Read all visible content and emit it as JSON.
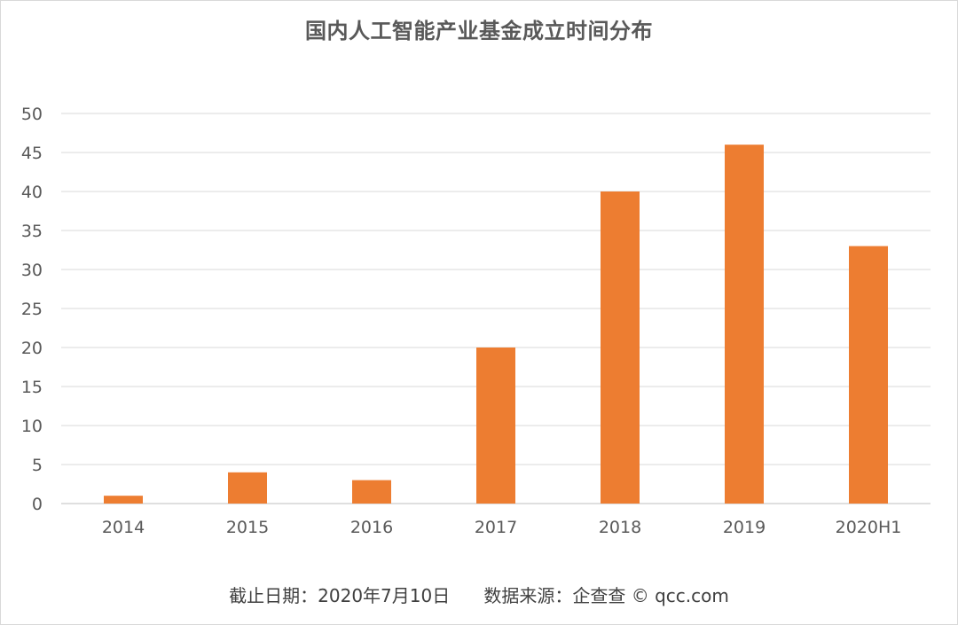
{
  "chart_data": {
    "type": "bar",
    "title": "国内人工智能产业基金成立时间分布",
    "categories": [
      "2014",
      "2015",
      "2016",
      "2017",
      "2018",
      "2019",
      "2020H1"
    ],
    "values": [
      1,
      4,
      3,
      20,
      40,
      46,
      33
    ],
    "ylim": [
      0,
      50
    ],
    "yticks": [
      0,
      5,
      10,
      15,
      20,
      25,
      30,
      35,
      40,
      45,
      50
    ],
    "xlabel": "",
    "ylabel": "",
    "grid": true,
    "legend": "none",
    "bar_color": "#ed7d31",
    "grid_color": "#d9d9d9"
  },
  "footer": {
    "note": "截止日期：2020年7月10日      数据来源：企查查 © qcc.com"
  }
}
